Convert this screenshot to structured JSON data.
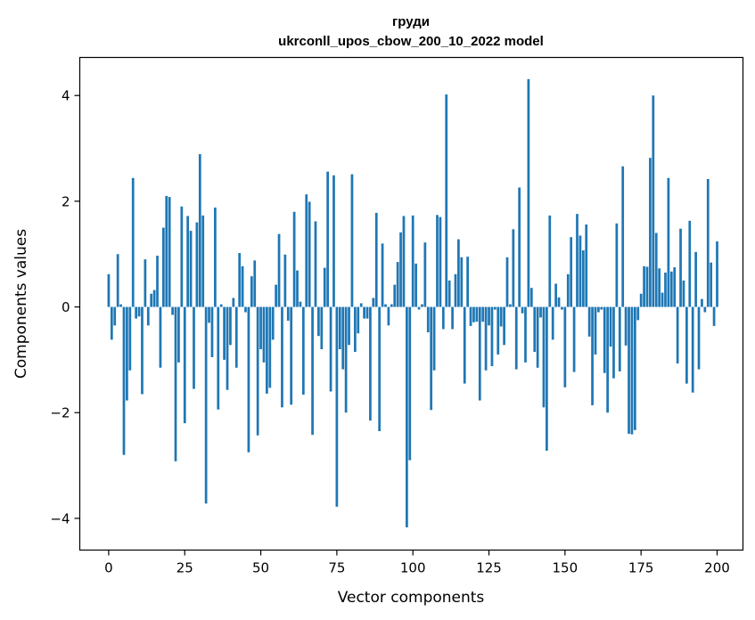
{
  "chart_data": {
    "type": "bar",
    "title": "груди",
    "subtitle": "ukrconll_upos_cbow_200_10_2022 model",
    "xlabel": "Vector components",
    "ylabel": "Components values",
    "xlim": [
      -9.5,
      208.5
    ],
    "ylim": [
      -4.6,
      4.72
    ],
    "xticks": [
      0,
      25,
      50,
      75,
      100,
      125,
      150,
      175,
      200
    ],
    "yticks": [
      -4,
      -2,
      0,
      2,
      4
    ],
    "ytick_labels": [
      "−4",
      "−2",
      "0",
      "2",
      "4"
    ],
    "bar_color": "#1f77b4",
    "grid": false,
    "values": [
      0.62,
      -0.62,
      -0.35,
      1.0,
      0.05,
      -2.8,
      -1.77,
      -1.2,
      2.44,
      -0.22,
      -0.18,
      -1.65,
      0.9,
      -0.35,
      0.25,
      0.32,
      0.97,
      -1.15,
      1.5,
      2.1,
      2.08,
      -0.15,
      -2.92,
      -1.05,
      1.9,
      -2.2,
      1.72,
      1.44,
      -1.55,
      1.6,
      2.89,
      1.73,
      -3.72,
      -0.3,
      -0.95,
      1.88,
      -1.94,
      0.05,
      -1.0,
      -1.57,
      -0.72,
      0.17,
      -1.15,
      1.02,
      0.77,
      -0.1,
      -2.75,
      0.58,
      0.88,
      -2.43,
      -0.8,
      -1.05,
      -1.64,
      -1.53,
      -0.62,
      0.42,
      1.38,
      -1.9,
      0.99,
      -0.26,
      -1.85,
      1.8,
      0.69,
      0.1,
      -1.66,
      2.13,
      1.99,
      -2.42,
      1.62,
      -0.55,
      -0.8,
      0.74,
      2.56,
      -1.6,
      2.49,
      -3.78,
      -0.8,
      -1.18,
      -2.0,
      -0.72,
      2.51,
      -0.85,
      -0.5,
      0.07,
      -0.22,
      -0.22,
      -2.15,
      0.17,
      1.78,
      -2.35,
      1.2,
      0.05,
      -0.35,
      0.05,
      0.42,
      0.85,
      1.41,
      1.72,
      -4.17,
      -2.9,
      1.73,
      0.82,
      -0.05,
      0.05,
      1.22,
      -0.48,
      -1.95,
      -1.2,
      1.74,
      1.7,
      -0.42,
      4.02,
      0.5,
      -0.42,
      0.62,
      1.28,
      0.94,
      -1.45,
      0.95,
      -0.36,
      -0.29,
      -0.28,
      -1.77,
      -0.28,
      -1.2,
      -0.35,
      -1.12,
      -0.05,
      -0.9,
      -0.37,
      -0.72,
      0.94,
      0.05,
      1.47,
      -1.18,
      2.26,
      -0.12,
      -1.05,
      4.31,
      0.36,
      -0.85,
      -1.15,
      -0.2,
      -1.9,
      -2.72,
      1.73,
      -0.62,
      0.44,
      0.18,
      -0.05,
      -1.52,
      0.62,
      1.32,
      -1.23,
      1.76,
      1.35,
      1.07,
      1.56,
      -0.56,
      -1.86,
      -0.9,
      -0.1,
      -0.05,
      -1.25,
      -2.0,
      -0.75,
      -1.35,
      1.58,
      -1.22,
      2.66,
      -0.73,
      -2.4,
      -2.41,
      -2.33,
      -0.25,
      0.25,
      0.77,
      0.76,
      2.82,
      4.0,
      1.4,
      0.73,
      0.27,
      0.65,
      2.44,
      0.67,
      0.75,
      -1.07,
      1.48,
      0.5,
      -1.45,
      1.63,
      -1.62,
      1.04,
      -1.18,
      0.15,
      -0.1,
      2.42,
      0.84,
      -0.36,
      1.24
    ]
  }
}
